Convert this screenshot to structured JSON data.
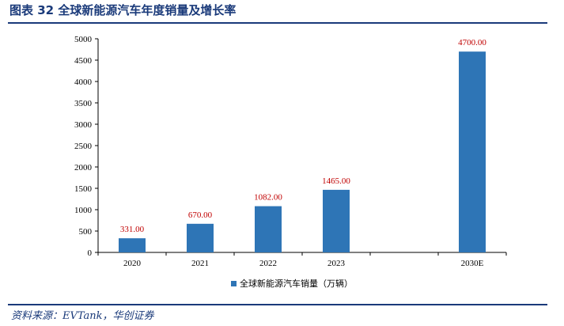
{
  "header": {
    "title": "图表 32   全球新能源汽车年度销量及增长率"
  },
  "footer": {
    "source": "资料来源：EVTank，华创证券"
  },
  "chart_data": {
    "type": "bar",
    "categories": [
      "2020",
      "2021",
      "2022",
      "2023",
      "",
      "2030E"
    ],
    "series": [
      {
        "name": "全球新能源汽车销量（万辆）",
        "values": [
          331.0,
          670.0,
          1082.0,
          1465.0,
          null,
          4700.0
        ],
        "labels": [
          "331.00",
          "670.00",
          "1082.00",
          "1465.00",
          "",
          "4700.00"
        ],
        "color": "#2e75b6"
      }
    ],
    "ylim": [
      0,
      5000
    ],
    "yticks": [
      0,
      500,
      1000,
      1500,
      2000,
      2500,
      3000,
      3500,
      4000,
      4500,
      5000
    ],
    "label_color": "#c00000",
    "grid": false,
    "legend_position": "bottom"
  }
}
